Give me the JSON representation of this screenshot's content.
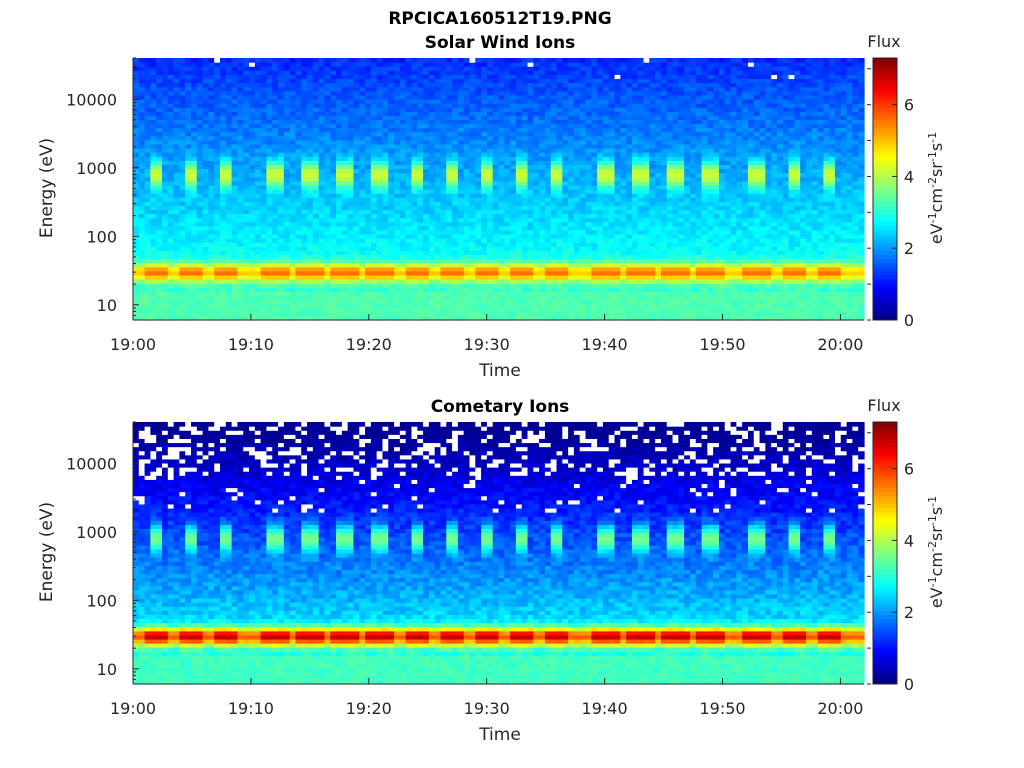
{
  "figure": {
    "title": "RPCICA160512T19.PNG"
  },
  "chart_data": [
    {
      "type": "heatmap",
      "title": "Solar Wind Ions",
      "xlabel": "Time",
      "ylabel": "Energy (eV)",
      "x_ticks": [
        "19:00",
        "19:10",
        "19:20",
        "19:30",
        "19:40",
        "19:50",
        "20:00"
      ],
      "x_range": [
        "19:00",
        "20:02"
      ],
      "y_scale": "log",
      "y_ticks": [
        "10",
        "100",
        "1000",
        "10000"
      ],
      "y_range": [
        6,
        40000
      ],
      "colorbar": {
        "label_top": "Flux",
        "unit": "eV⁻¹cm⁻²sr⁻¹s⁻¹",
        "ticks": [
          "0",
          "2",
          "4",
          "6"
        ],
        "range": [
          0,
          7.3
        ],
        "colormap": "jet"
      },
      "bands": [
        {
          "energy_eV": 30,
          "peak_flux": 5.6,
          "note": "persistent band at ~20-50 eV"
        },
        {
          "energy_eV": 800,
          "peak_flux": 4.2,
          "note": "periodic bursts at ~500-2000 eV"
        }
      ],
      "burst_times": [
        "19:02",
        "19:05",
        "19:08",
        "19:12",
        "19:15",
        "19:18",
        "19:21",
        "19:24",
        "19:27",
        "19:30",
        "19:33",
        "19:36",
        "19:40",
        "19:43",
        "19:46",
        "19:49",
        "19:53",
        "19:56",
        "19:59"
      ]
    },
    {
      "type": "heatmap",
      "title": "Cometary Ions",
      "xlabel": "Time",
      "ylabel": "Energy (eV)",
      "x_ticks": [
        "19:00",
        "19:10",
        "19:20",
        "19:30",
        "19:40",
        "19:50",
        "20:00"
      ],
      "x_range": [
        "19:00",
        "20:02"
      ],
      "y_scale": "log",
      "y_ticks": [
        "10",
        "100",
        "1000",
        "10000"
      ],
      "y_range": [
        6,
        40000
      ],
      "colorbar": {
        "label_top": "Flux",
        "unit": "eV⁻¹cm⁻²sr⁻¹s⁻¹",
        "ticks": [
          "0",
          "2",
          "4",
          "6"
        ],
        "range": [
          0,
          7.3
        ],
        "colormap": "jet"
      },
      "bands": [
        {
          "energy_eV": 30,
          "peak_flux": 6.8,
          "note": "intense band at ~20-50 eV"
        },
        {
          "energy_eV": 800,
          "peak_flux": 3.6,
          "note": "periodic bursts at ~500-2000 eV"
        }
      ],
      "burst_times": [
        "19:02",
        "19:05",
        "19:08",
        "19:12",
        "19:15",
        "19:18",
        "19:21",
        "19:24",
        "19:27",
        "19:30",
        "19:33",
        "19:36",
        "19:40",
        "19:43",
        "19:46",
        "19:49",
        "19:53",
        "19:56",
        "19:59"
      ]
    }
  ]
}
